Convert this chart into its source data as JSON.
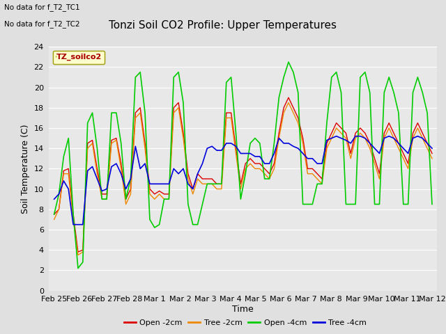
{
  "title": "Tonzi Soil CO2 Profile: Upper Temperatures",
  "ylabel": "Soil Temperature (C)",
  "xlabel": "Time",
  "top_text_line1": "No data for f_T2_TC1",
  "top_text_line2": "No data for f_T2_TC2",
  "legend_box_label": "TZ_soilco2",
  "ylim": [
    0,
    24
  ],
  "yticks": [
    0,
    2,
    4,
    6,
    8,
    10,
    12,
    14,
    16,
    18,
    20,
    22,
    24
  ],
  "xtick_labels": [
    "Feb 25",
    "Feb 26",
    "Feb 27",
    "Feb 28",
    "Mar 1",
    "Mar 2",
    "Mar 3",
    "Mar 4",
    "Mar 5",
    "Mar 6",
    "Mar 7",
    "Mar 8",
    "Mar 9",
    "Mar 10",
    "Mar 11",
    "Mar 12"
  ],
  "series_colors": [
    "#dd0000",
    "#ee8800",
    "#00cc00",
    "#0000dd"
  ],
  "series_labels": [
    "Open -2cm",
    "Tree -2cm",
    "Open -4cm",
    "Tree -4cm"
  ],
  "open_2cm": [
    7.5,
    8.0,
    11.8,
    12.0,
    7.5,
    3.8,
    4.0,
    14.5,
    14.8,
    12.0,
    9.5,
    9.5,
    14.8,
    15.0,
    12.5,
    9.0,
    10.0,
    17.5,
    18.0,
    14.5,
    10.0,
    9.5,
    9.8,
    9.5,
    9.5,
    18.0,
    18.5,
    15.5,
    11.5,
    10.0,
    11.5,
    11.0,
    11.0,
    11.0,
    10.5,
    10.5,
    17.5,
    17.5,
    14.0,
    10.5,
    12.5,
    13.0,
    12.5,
    12.5,
    12.0,
    11.5,
    12.5,
    15.5,
    18.0,
    19.0,
    18.0,
    17.0,
    15.0,
    12.0,
    12.0,
    11.5,
    11.0,
    14.5,
    15.5,
    16.5,
    16.0,
    15.5,
    13.5,
    15.5,
    16.0,
    15.5,
    14.5,
    13.0,
    11.5,
    15.5,
    16.5,
    15.5,
    14.5,
    13.5,
    12.5,
    15.5,
    16.5,
    15.5,
    14.5,
    13.5
  ],
  "tree_2cm": [
    7.0,
    8.0,
    11.5,
    11.5,
    7.0,
    3.5,
    3.8,
    14.0,
    14.5,
    11.5,
    9.0,
    9.0,
    14.5,
    14.8,
    12.0,
    8.5,
    9.5,
    17.0,
    17.5,
    14.0,
    9.5,
    9.0,
    9.5,
    9.0,
    9.0,
    17.5,
    18.0,
    15.0,
    11.0,
    9.5,
    11.0,
    10.5,
    10.5,
    10.5,
    10.0,
    10.0,
    17.0,
    17.0,
    13.5,
    10.0,
    12.0,
    12.5,
    12.0,
    12.0,
    11.5,
    11.0,
    12.0,
    15.0,
    17.5,
    18.5,
    17.5,
    16.5,
    14.5,
    11.5,
    11.5,
    11.0,
    10.5,
    14.0,
    15.0,
    16.0,
    15.5,
    15.0,
    13.0,
    15.0,
    15.5,
    15.0,
    14.0,
    12.5,
    11.0,
    15.0,
    16.0,
    15.0,
    14.0,
    13.0,
    12.0,
    15.0,
    16.0,
    15.0,
    14.0,
    13.0
  ],
  "open_4cm": [
    7.5,
    9.5,
    13.2,
    15.0,
    7.5,
    2.2,
    2.8,
    16.5,
    17.5,
    14.0,
    9.0,
    9.0,
    17.5,
    17.5,
    14.5,
    9.0,
    11.0,
    21.0,
    21.5,
    17.5,
    7.0,
    6.2,
    6.5,
    9.0,
    9.0,
    21.0,
    21.5,
    18.5,
    8.5,
    6.5,
    6.5,
    8.5,
    10.5,
    10.5,
    10.5,
    10.5,
    20.5,
    21.0,
    15.5,
    9.0,
    11.5,
    14.5,
    15.0,
    14.5,
    11.0,
    11.0,
    14.5,
    19.0,
    21.0,
    22.5,
    21.5,
    19.5,
    8.5,
    8.5,
    8.5,
    10.5,
    10.5,
    16.5,
    21.0,
    21.5,
    19.5,
    8.5,
    8.5,
    8.5,
    21.0,
    21.5,
    19.5,
    8.5,
    8.5,
    19.5,
    21.0,
    19.5,
    17.5,
    8.5,
    8.5,
    19.5,
    21.0,
    19.5,
    17.5,
    8.5
  ],
  "tree_4cm": [
    9.0,
    9.5,
    10.8,
    10.0,
    6.5,
    6.5,
    6.5,
    11.8,
    12.2,
    11.0,
    9.8,
    10.0,
    12.2,
    12.5,
    11.5,
    10.0,
    11.0,
    14.2,
    12.0,
    12.5,
    10.5,
    10.5,
    10.5,
    10.5,
    10.5,
    12.0,
    11.5,
    12.0,
    10.5,
    10.0,
    11.5,
    12.5,
    14.0,
    14.2,
    13.8,
    13.8,
    14.5,
    14.5,
    14.2,
    13.5,
    13.5,
    13.5,
    13.2,
    13.2,
    12.5,
    12.5,
    13.5,
    15.0,
    14.5,
    14.5,
    14.2,
    14.0,
    13.5,
    13.0,
    13.0,
    12.5,
    12.5,
    14.8,
    15.0,
    15.2,
    15.0,
    14.8,
    14.5,
    15.2,
    15.2,
    15.0,
    14.5,
    14.0,
    13.5,
    15.0,
    15.2,
    15.0,
    14.5,
    14.0,
    13.5,
    15.0,
    15.2,
    15.0,
    14.5,
    14.0
  ],
  "background_color": "#e8e8e8",
  "grid_color": "#ffffff",
  "fig_bg": "#e0e0e0",
  "title_fontsize": 11,
  "axis_fontsize": 9,
  "tick_fontsize": 8
}
